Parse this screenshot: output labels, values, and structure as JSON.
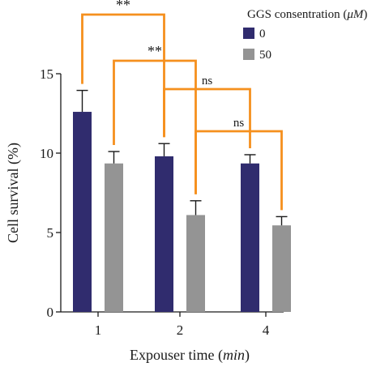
{
  "chart_data": {
    "type": "bar",
    "categories": [
      "1",
      "2",
      "4"
    ],
    "series": [
      {
        "name": "0",
        "color": "#302c6e",
        "values": [
          12.6,
          9.8,
          9.35
        ],
        "errors": [
          1.35,
          0.8,
          0.55
        ]
      },
      {
        "name": "50",
        "color": "#949494",
        "values": [
          9.35,
          6.1,
          5.45
        ],
        "errors": [
          0.75,
          0.9,
          0.55
        ]
      }
    ],
    "xlabel_main": "Expouser time (",
    "xlabel_unit": "min",
    "xlabel_close": ")",
    "ylabel": "Cell survival (%)",
    "ylim": [
      0,
      15
    ],
    "yticks": [
      0,
      5,
      10,
      15
    ],
    "grid": false,
    "legend": {
      "title_main": "GGS consentration (",
      "title_unit": "μM",
      "title_close": ")",
      "placement": "top-right"
    },
    "bracket_color": "#f5901e",
    "significance": [
      {
        "label": "**",
        "from": [
          0,
          0
        ],
        "to": [
          1,
          0
        ]
      },
      {
        "label": "**",
        "from": [
          0,
          1
        ],
        "to": [
          1,
          1
        ]
      },
      {
        "label": "ns",
        "from": [
          1,
          0
        ],
        "to": [
          2,
          0
        ]
      },
      {
        "label": "ns",
        "from": [
          1,
          1
        ],
        "to": [
          2,
          1
        ]
      }
    ]
  }
}
